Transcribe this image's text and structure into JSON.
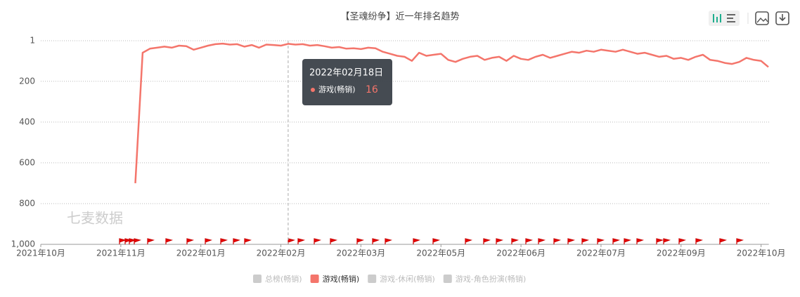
{
  "chart_data": {
    "type": "line",
    "title": "【圣魂纷争】近一年排名趋势",
    "watermark": "七麦数据",
    "categories": [
      "2021年10月",
      null,
      null,
      null,
      null,
      null,
      null,
      null,
      null,
      null,
      null,
      "2021年11月",
      null,
      null,
      null,
      null,
      null,
      null,
      null,
      null,
      null,
      null,
      "2022年01月",
      null,
      null,
      null,
      null,
      null,
      null,
      null,
      null,
      null,
      null,
      "2022年02月",
      null,
      null,
      null,
      null,
      null,
      null,
      null,
      null,
      null,
      null,
      "2022年03月",
      null,
      null,
      null,
      null,
      null,
      null,
      null,
      null,
      null,
      null,
      "2022年05月",
      null,
      null,
      null,
      null,
      null,
      null,
      null,
      null,
      null,
      null,
      "2022年06月",
      null,
      null,
      null,
      null,
      null,
      null,
      null,
      null,
      null,
      null,
      "2022年07月",
      null,
      null,
      null,
      null,
      null,
      null,
      null,
      null,
      null,
      null,
      "2022年09月",
      null,
      null,
      null,
      null,
      null,
      null,
      null,
      null,
      null,
      null,
      "2022年10月",
      null
    ],
    "series": [
      {
        "name": "游戏(畅销)",
        "color": "#f4756b",
        "values": [
          null,
          null,
          null,
          null,
          null,
          null,
          null,
          null,
          null,
          null,
          null,
          null,
          null,
          700,
          60,
          40,
          35,
          30,
          35,
          25,
          28,
          45,
          35,
          25,
          18,
          15,
          20,
          18,
          30,
          22,
          35,
          20,
          22,
          25,
          16,
          20,
          18,
          25,
          22,
          28,
          35,
          32,
          40,
          38,
          42,
          35,
          38,
          55,
          65,
          75,
          80,
          100,
          60,
          75,
          70,
          65,
          95,
          105,
          90,
          80,
          75,
          95,
          85,
          80,
          100,
          75,
          90,
          95,
          80,
          70,
          85,
          75,
          65,
          55,
          60,
          50,
          55,
          45,
          50,
          55,
          45,
          55,
          65,
          60,
          70,
          80,
          75,
          90,
          85,
          95,
          80,
          70,
          95,
          100,
          110,
          115,
          105,
          85,
          95,
          100,
          130
        ]
      }
    ],
    "ylim": [
      1,
      1000
    ],
    "y_inverted": true,
    "yticks": [
      1,
      200,
      400,
      600,
      800,
      {
        "value": 1000,
        "label": "1,000"
      }
    ],
    "grid": true,
    "legend": [
      {
        "name": "总榜(畅销)",
        "color": "#cccccc"
      },
      {
        "name": "游戏(畅销)",
        "color": "#f4756b"
      },
      {
        "name": "游戏-休闲(畅销)",
        "color": "#cccccc"
      },
      {
        "name": "游戏-角色扮演(畅销)",
        "color": "#cccccc"
      }
    ],
    "tooltip": {
      "title": "2022年02月18日",
      "name": "游戏(畅销)",
      "value": 16,
      "index": 34
    }
  }
}
